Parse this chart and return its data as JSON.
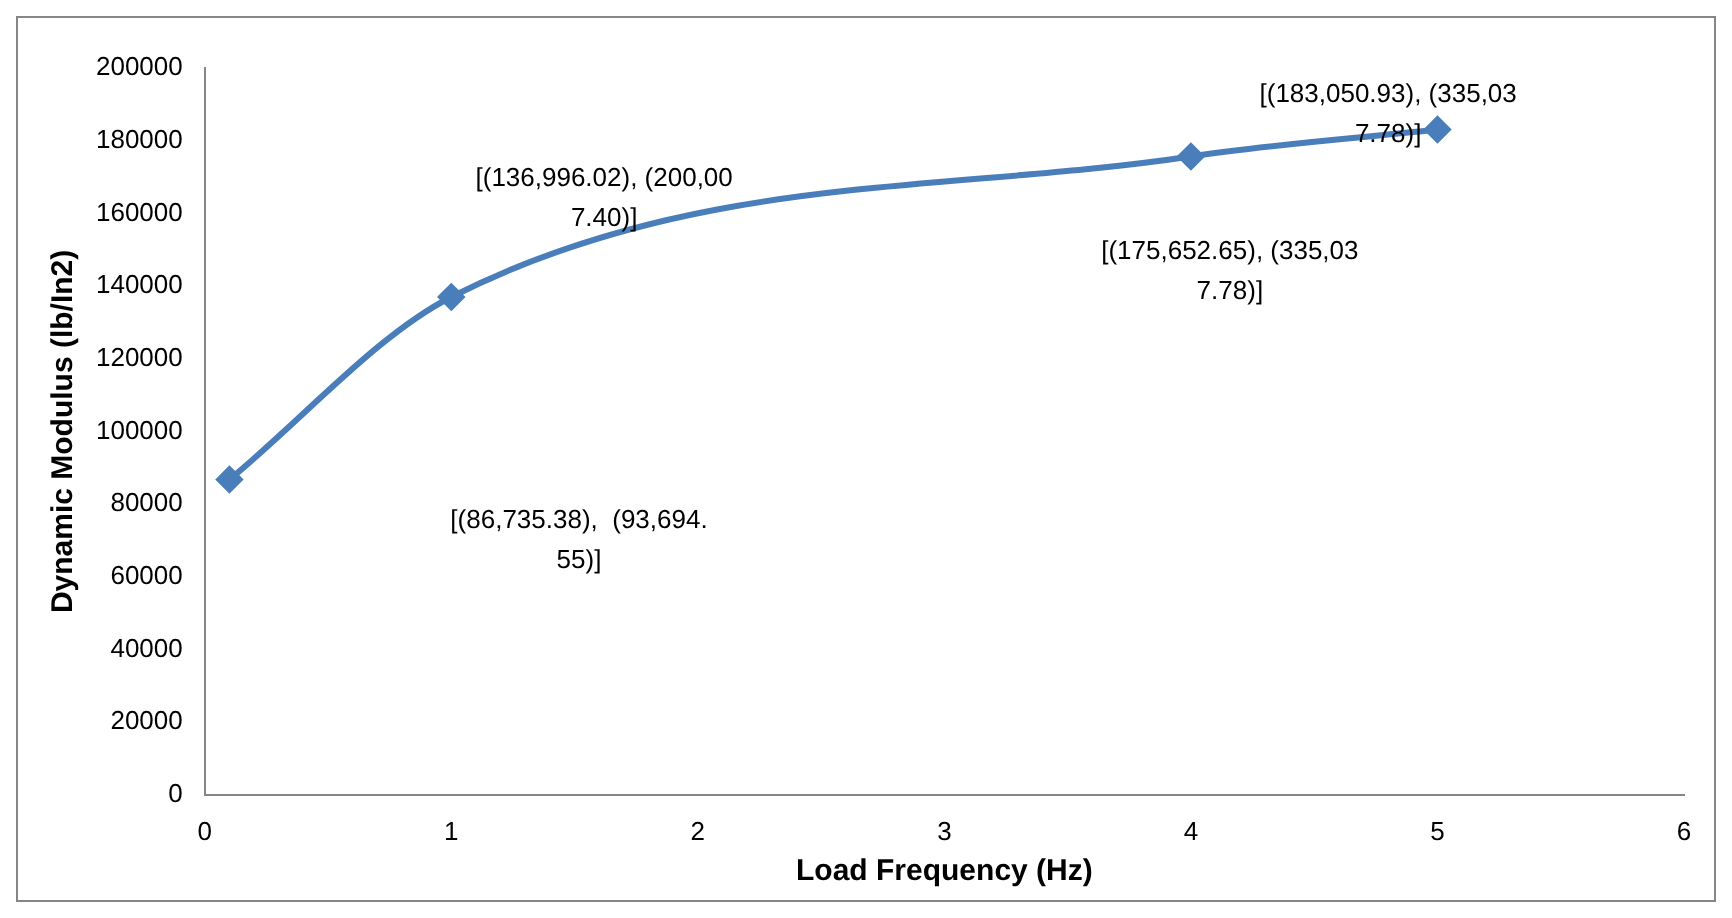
{
  "chart_data": {
    "type": "line",
    "xlabel": "Load Frequency (Hz)",
    "ylabel": "Dynamic Modulus (lb/In2)",
    "x": [
      0.1,
      1,
      4,
      5
    ],
    "series": [
      {
        "color": "#4a7ebb",
        "values": [
          86735.38,
          136996.02,
          175652.65,
          183050.93
        ]
      }
    ],
    "xlim": [
      0,
      6
    ],
    "xticks": [
      0,
      1,
      2,
      3,
      4,
      5,
      6
    ],
    "ylim": [
      0,
      200000
    ],
    "yticks": [
      0,
      20000,
      40000,
      60000,
      80000,
      100000,
      120000,
      140000,
      160000,
      180000,
      200000
    ],
    "grid": false,
    "legend": false,
    "marker": "diamond",
    "line_style": "solid",
    "annotations": [
      "[(86,735.38),  (93,694.55)]",
      "[(136,996.02), (200,007.40)]",
      "[(175,652.65), (335,037.78)]",
      "[(183,050.93), (335,037.78)]"
    ]
  }
}
